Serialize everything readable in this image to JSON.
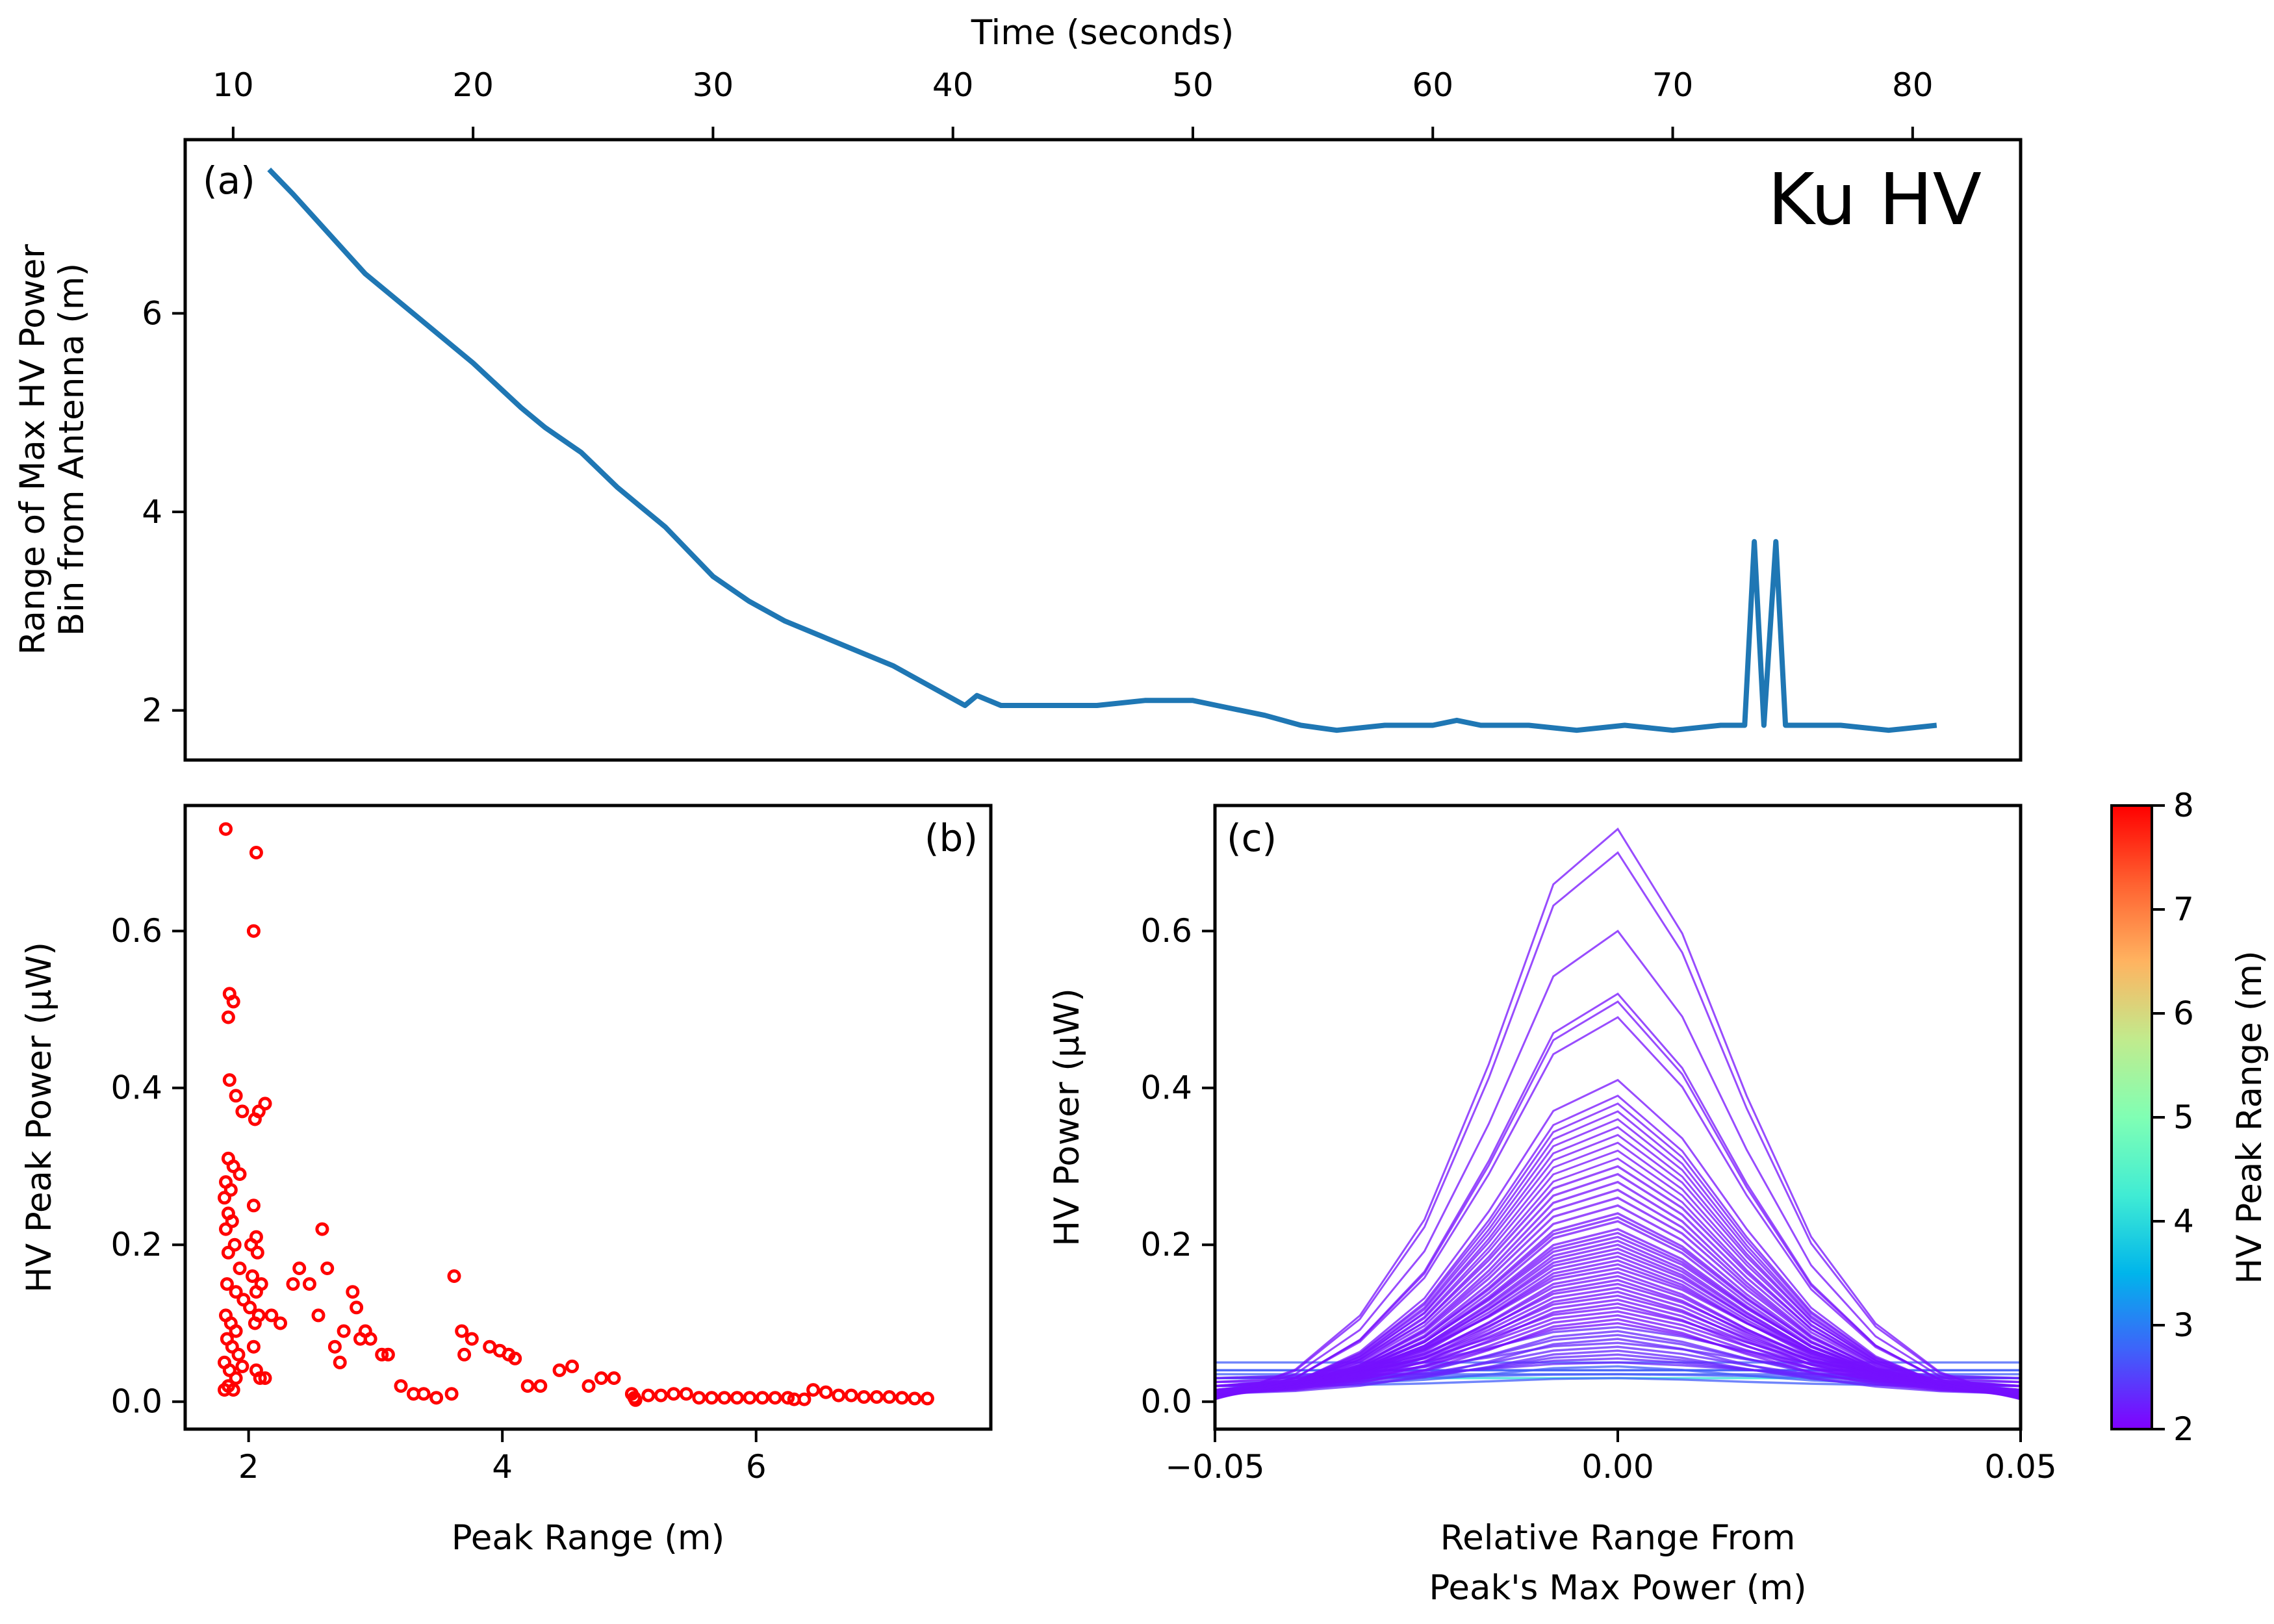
{
  "chart_data": [
    {
      "id": "a",
      "type": "line",
      "panel_label": "(a)",
      "annotation": "Ku HV",
      "xlabel": "Time (seconds)",
      "x_axis_position": "top",
      "ylabel_lines": [
        "Range of Max HV Power",
        "Bin from Antenna (m)"
      ],
      "xlim": [
        8,
        84.5
      ],
      "ylim": [
        1.5,
        7.75
      ],
      "xticks": [
        10,
        20,
        30,
        40,
        50,
        60,
        70,
        80
      ],
      "yticks": [
        2,
        4,
        6
      ],
      "color": "#1f77b4",
      "x": [
        11.5,
        12.5,
        14,
        15.5,
        16.5,
        18,
        20,
        22,
        23,
        24.5,
        26,
        27,
        28,
        29,
        30,
        31.5,
        33,
        34.5,
        36,
        37.5,
        39,
        40.5,
        41,
        42,
        43.5,
        44,
        46,
        48,
        50,
        51,
        53,
        54.5,
        56,
        58,
        60,
        61,
        62,
        64,
        66,
        68,
        70,
        72,
        73,
        73.4,
        73.8,
        74.3,
        74.7,
        75.2,
        77,
        79,
        81
      ],
      "y": [
        7.45,
        7.2,
        6.8,
        6.4,
        6.2,
        5.9,
        5.5,
        5.05,
        4.85,
        4.6,
        4.25,
        4.05,
        3.85,
        3.6,
        3.35,
        3.1,
        2.9,
        2.75,
        2.6,
        2.45,
        2.25,
        2.05,
        2.15,
        2.05,
        2.05,
        2.05,
        2.05,
        2.1,
        2.1,
        2.05,
        1.95,
        1.85,
        1.8,
        1.85,
        1.85,
        1.9,
        1.85,
        1.85,
        1.8,
        1.85,
        1.8,
        1.85,
        1.85,
        3.7,
        1.85,
        3.7,
        1.85,
        1.85,
        1.85,
        1.8,
        1.85
      ]
    },
    {
      "id": "b",
      "type": "scatter",
      "panel_label": "(b)",
      "xlabel": "Peak Range (m)",
      "ylabel": "HV Peak Power (μW)",
      "xlim": [
        1.5,
        7.85
      ],
      "ylim": [
        -0.035,
        0.76
      ],
      "xticks": [
        2,
        4,
        6
      ],
      "yticks": [
        0.0,
        0.2,
        0.4,
        0.6
      ],
      "ytick_labels": [
        "0.0",
        "0.2",
        "0.4",
        "0.6"
      ],
      "color": "#ff0000",
      "points": [
        [
          1.82,
          0.73
        ],
        [
          2.06,
          0.7
        ],
        [
          2.04,
          0.6
        ],
        [
          1.85,
          0.52
        ],
        [
          1.88,
          0.51
        ],
        [
          1.84,
          0.49
        ],
        [
          1.85,
          0.41
        ],
        [
          1.9,
          0.39
        ],
        [
          1.95,
          0.37
        ],
        [
          2.08,
          0.37
        ],
        [
          2.13,
          0.38
        ],
        [
          2.05,
          0.36
        ],
        [
          1.84,
          0.31
        ],
        [
          1.88,
          0.3
        ],
        [
          1.93,
          0.29
        ],
        [
          1.82,
          0.28
        ],
        [
          1.86,
          0.27
        ],
        [
          1.81,
          0.26
        ],
        [
          2.04,
          0.25
        ],
        [
          1.84,
          0.24
        ],
        [
          1.87,
          0.23
        ],
        [
          1.82,
          0.22
        ],
        [
          2.06,
          0.21
        ],
        [
          1.89,
          0.2
        ],
        [
          1.84,
          0.19
        ],
        [
          2.02,
          0.2
        ],
        [
          2.07,
          0.19
        ],
        [
          1.93,
          0.17
        ],
        [
          2.03,
          0.16
        ],
        [
          1.83,
          0.15
        ],
        [
          1.9,
          0.14
        ],
        [
          2.06,
          0.14
        ],
        [
          2.1,
          0.15
        ],
        [
          1.96,
          0.13
        ],
        [
          2.01,
          0.12
        ],
        [
          1.82,
          0.11
        ],
        [
          1.86,
          0.1
        ],
        [
          1.9,
          0.09
        ],
        [
          2.05,
          0.1
        ],
        [
          2.08,
          0.11
        ],
        [
          1.83,
          0.08
        ],
        [
          1.87,
          0.07
        ],
        [
          1.92,
          0.06
        ],
        [
          2.04,
          0.07
        ],
        [
          1.81,
          0.05
        ],
        [
          1.85,
          0.04
        ],
        [
          1.9,
          0.03
        ],
        [
          2.06,
          0.04
        ],
        [
          1.84,
          0.02
        ],
        [
          1.88,
          0.015
        ],
        [
          2.09,
          0.03
        ],
        [
          2.13,
          0.03
        ],
        [
          1.81,
          0.015
        ],
        [
          1.95,
          0.045
        ],
        [
          2.18,
          0.11
        ],
        [
          2.25,
          0.1
        ],
        [
          2.35,
          0.15
        ],
        [
          2.4,
          0.17
        ],
        [
          2.48,
          0.15
        ],
        [
          2.55,
          0.11
        ],
        [
          2.58,
          0.22
        ],
        [
          2.62,
          0.17
        ],
        [
          2.68,
          0.07
        ],
        [
          2.75,
          0.09
        ],
        [
          2.72,
          0.05
        ],
        [
          2.82,
          0.14
        ],
        [
          2.85,
          0.12
        ],
        [
          2.88,
          0.08
        ],
        [
          2.92,
          0.09
        ],
        [
          2.96,
          0.08
        ],
        [
          3.05,
          0.06
        ],
        [
          3.1,
          0.06
        ],
        [
          3.2,
          0.02
        ],
        [
          3.3,
          0.01
        ],
        [
          3.38,
          0.01
        ],
        [
          3.48,
          0.005
        ],
        [
          3.6,
          0.01
        ],
        [
          3.62,
          0.16
        ],
        [
          3.68,
          0.09
        ],
        [
          3.7,
          0.06
        ],
        [
          3.76,
          0.08
        ],
        [
          3.9,
          0.07
        ],
        [
          3.98,
          0.065
        ],
        [
          4.05,
          0.06
        ],
        [
          4.1,
          0.055
        ],
        [
          4.2,
          0.02
        ],
        [
          4.3,
          0.02
        ],
        [
          4.45,
          0.04
        ],
        [
          4.55,
          0.045
        ],
        [
          4.68,
          0.02
        ],
        [
          4.78,
          0.03
        ],
        [
          4.88,
          0.03
        ],
        [
          5.02,
          0.01
        ],
        [
          5.04,
          0.005
        ],
        [
          5.05,
          0.002
        ],
        [
          5.15,
          0.008
        ],
        [
          5.25,
          0.008
        ],
        [
          5.35,
          0.01
        ],
        [
          5.45,
          0.01
        ],
        [
          5.55,
          0.005
        ],
        [
          5.65,
          0.005
        ],
        [
          5.75,
          0.005
        ],
        [
          5.85,
          0.005
        ],
        [
          5.95,
          0.005
        ],
        [
          6.05,
          0.005
        ],
        [
          6.15,
          0.005
        ],
        [
          6.25,
          0.005
        ],
        [
          6.3,
          0.003
        ],
        [
          6.38,
          0.003
        ],
        [
          6.45,
          0.015
        ],
        [
          6.55,
          0.012
        ],
        [
          6.65,
          0.008
        ],
        [
          6.75,
          0.008
        ],
        [
          6.85,
          0.006
        ],
        [
          6.95,
          0.006
        ],
        [
          7.05,
          0.006
        ],
        [
          7.15,
          0.005
        ],
        [
          7.25,
          0.004
        ],
        [
          7.35,
          0.004
        ]
      ]
    },
    {
      "id": "c",
      "type": "line",
      "panel_label": "(c)",
      "xlabel_lines": [
        "Relative Range From",
        "Peak's Max Power (m)"
      ],
      "ylabel": "HV Power (μW)",
      "xlim": [
        -0.05,
        0.05
      ],
      "ylim": [
        -0.035,
        0.76
      ],
      "xticks": [
        -0.05,
        0.0,
        0.05
      ],
      "xtick_labels": [
        "−0.05",
        "0.00",
        "0.05"
      ],
      "yticks": [
        0.0,
        0.2,
        0.4,
        0.6
      ],
      "ytick_labels": [
        "0.0",
        "0.2",
        "0.4",
        "0.6"
      ],
      "x": [
        -0.05,
        -0.04,
        -0.032,
        -0.024,
        -0.016,
        -0.008,
        0.0,
        0.008,
        0.016,
        0.024,
        0.032,
        0.04,
        0.05
      ],
      "profile": [
        0.0,
        0.05,
        0.14,
        0.3,
        0.56,
        0.86,
        1.0,
        0.86,
        0.56,
        0.3,
        0.14,
        0.05,
        0.0
      ],
      "series_peaks": [
        0.73,
        0.7,
        0.6,
        0.52,
        0.51,
        0.49,
        0.41,
        0.39,
        0.38,
        0.37,
        0.36,
        0.35,
        0.34,
        0.33,
        0.32,
        0.31,
        0.3,
        0.29,
        0.28,
        0.27,
        0.26,
        0.25,
        0.24,
        0.235,
        0.23,
        0.22,
        0.215,
        0.21,
        0.205,
        0.2,
        0.195,
        0.19,
        0.185,
        0.18,
        0.175,
        0.17,
        0.165,
        0.16,
        0.155,
        0.15,
        0.145,
        0.14,
        0.135,
        0.13,
        0.125,
        0.12,
        0.115,
        0.11,
        0.105,
        0.1,
        0.095,
        0.09,
        0.085,
        0.08,
        0.075,
        0.07,
        0.065,
        0.06,
        0.055,
        0.05,
        0.045,
        0.04,
        0.035,
        0.03,
        0.025,
        0.02,
        0.015,
        0.01
      ],
      "series_base": [
        0.03,
        0.05,
        0.04,
        0.035,
        0.02,
        0.03,
        0.04,
        0.02,
        0.03,
        0.025,
        0.02,
        0.015,
        0.02,
        0.03,
        0.01,
        0.02,
        0.015,
        0.03,
        0.02,
        0.01,
        0.015,
        0.02,
        0.025,
        0.01,
        0.015,
        0.02,
        0.01,
        0.015,
        0.02,
        0.01,
        0.015,
        0.01,
        0.02,
        0.015,
        0.01,
        0.012,
        0.015,
        0.01,
        0.012,
        0.01,
        0.015,
        0.012,
        0.01,
        0.008,
        0.012,
        0.01,
        0.008,
        0.01,
        0.008,
        0.006,
        0.008,
        0.01,
        0.006,
        0.008,
        0.006,
        0.008,
        0.005,
        0.006,
        0.005,
        0.006,
        0.005,
        0.004,
        0.005,
        0.004,
        0.003,
        0.004,
        0.003,
        0.003
      ],
      "colorbar": {
        "label": "HV Peak Range (m)",
        "range": [
          2,
          8
        ],
        "ticks": [
          2,
          3,
          4,
          5,
          6,
          7,
          8
        ],
        "stops": [
          "#8000ff",
          "#3f61fa",
          "#00b5eb",
          "#40ecd4",
          "#80ffb4",
          "#c1eb8d",
          "#ffb360",
          "#ff6130",
          "#ff0000"
        ]
      }
    }
  ]
}
